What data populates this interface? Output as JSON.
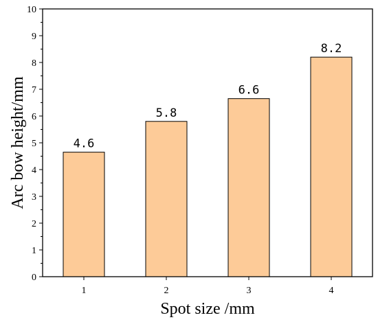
{
  "chart_data": {
    "type": "bar",
    "title": "",
    "xlabel": "Spot size /mm",
    "ylabel": "Arc bow height/mm",
    "categories": [
      "1",
      "2",
      "3",
      "4"
    ],
    "values": [
      4.65,
      5.8,
      6.65,
      8.2
    ],
    "data_labels": [
      "4.6",
      "5.8",
      "6.6",
      "8.2"
    ],
    "ylim": [
      0,
      10
    ],
    "yticks": [
      "0",
      "1",
      "2",
      "3",
      "4",
      "5",
      "6",
      "7",
      "8",
      "9",
      "10"
    ],
    "grid": false,
    "legend": "none",
    "bar_color": "#FDCB98",
    "bar_edge_color": "#000000"
  }
}
